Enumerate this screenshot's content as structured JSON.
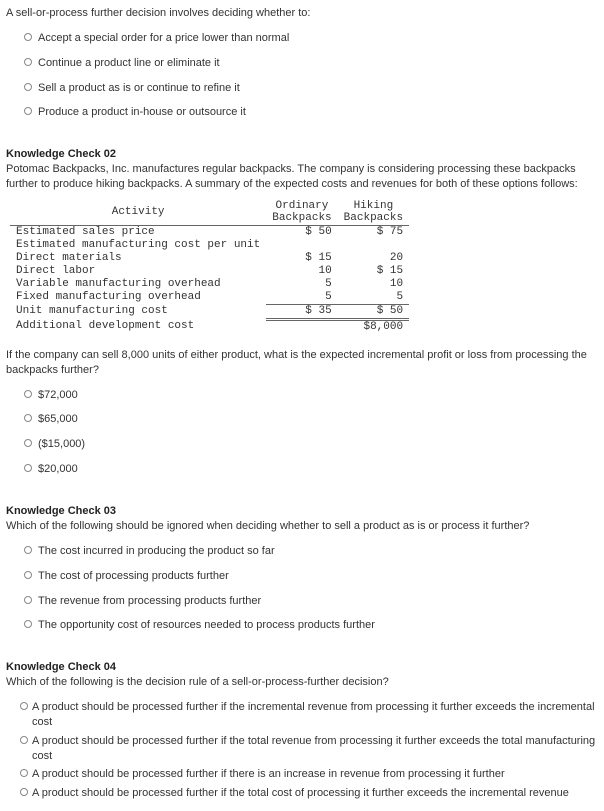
{
  "q1": {
    "prompt": "A sell-or-process further decision involves deciding whether to:",
    "options": [
      "Accept a special order for a price lower than normal",
      "Continue a product line or eliminate it",
      "Sell a product as is or continue to refine it",
      "Produce a product in-house or outsource it"
    ]
  },
  "q2": {
    "heading": "Knowledge Check 02",
    "intro": "Potomac Backpacks, Inc. manufactures regular backpacks. The company is considering processing these backpacks further to produce hiking backpacks. A summary of the expected costs and revenues for both of these options follows:",
    "table": {
      "headers": {
        "c0": "Activity",
        "c1": "Ordinary Backpacks",
        "c2": "Hiking Backpacks"
      },
      "rows": [
        {
          "label": "Estimated sales price",
          "ord": "$ 50",
          "hik": "$   75",
          "cls": "sub"
        },
        {
          "label": "Estimated manufacturing cost per unit",
          "ord": "",
          "hik": "",
          "cls": ""
        },
        {
          "label": "Direct materials",
          "ord": "$ 15",
          "hik": "20",
          "cls": ""
        },
        {
          "label": "Direct labor",
          "ord": "10",
          "hik": "$   15",
          "cls": ""
        },
        {
          "label": "Variable manufacturing overhead",
          "ord": "5",
          "hik": "10",
          "cls": ""
        },
        {
          "label": "Fixed manufacturing overhead",
          "ord": "5",
          "hik": "5",
          "cls": ""
        },
        {
          "label": "Unit manufacturing cost",
          "ord": "$ 35",
          "hik": "$   50",
          "cls": "tot"
        },
        {
          "label": "Additional development cost",
          "ord": "",
          "hik": "$8,000",
          "cls": ""
        }
      ]
    },
    "subprompt": "If the company can sell 8,000 units of either product, what is the expected incremental profit or loss from processing the backpacks further?",
    "options": [
      "$72,000",
      "$65,000",
      "($15,000)",
      "$20,000"
    ]
  },
  "q3": {
    "heading": "Knowledge Check 03",
    "prompt": "Which of the following should be ignored when deciding whether to sell a product as is or process it further?",
    "options": [
      "The cost incurred in producing the product so far",
      "The cost of processing products further",
      "The revenue from processing products further",
      "The opportunity cost of resources needed to process products further"
    ]
  },
  "q4": {
    "heading": "Knowledge Check 04",
    "prompt": "Which of the following is the decision rule of a sell-or-process-further decision?",
    "options": [
      "A product should be processed further if the incremental revenue from processing it further exceeds the incremental cost",
      "A product should be processed further if the total revenue from processing it further exceeds the total manufacturing cost",
      "A product should be processed further if there is an increase in revenue from processing it further",
      "A product should be processed further if the total cost of processing it further exceeds the incremental revenue"
    ]
  }
}
